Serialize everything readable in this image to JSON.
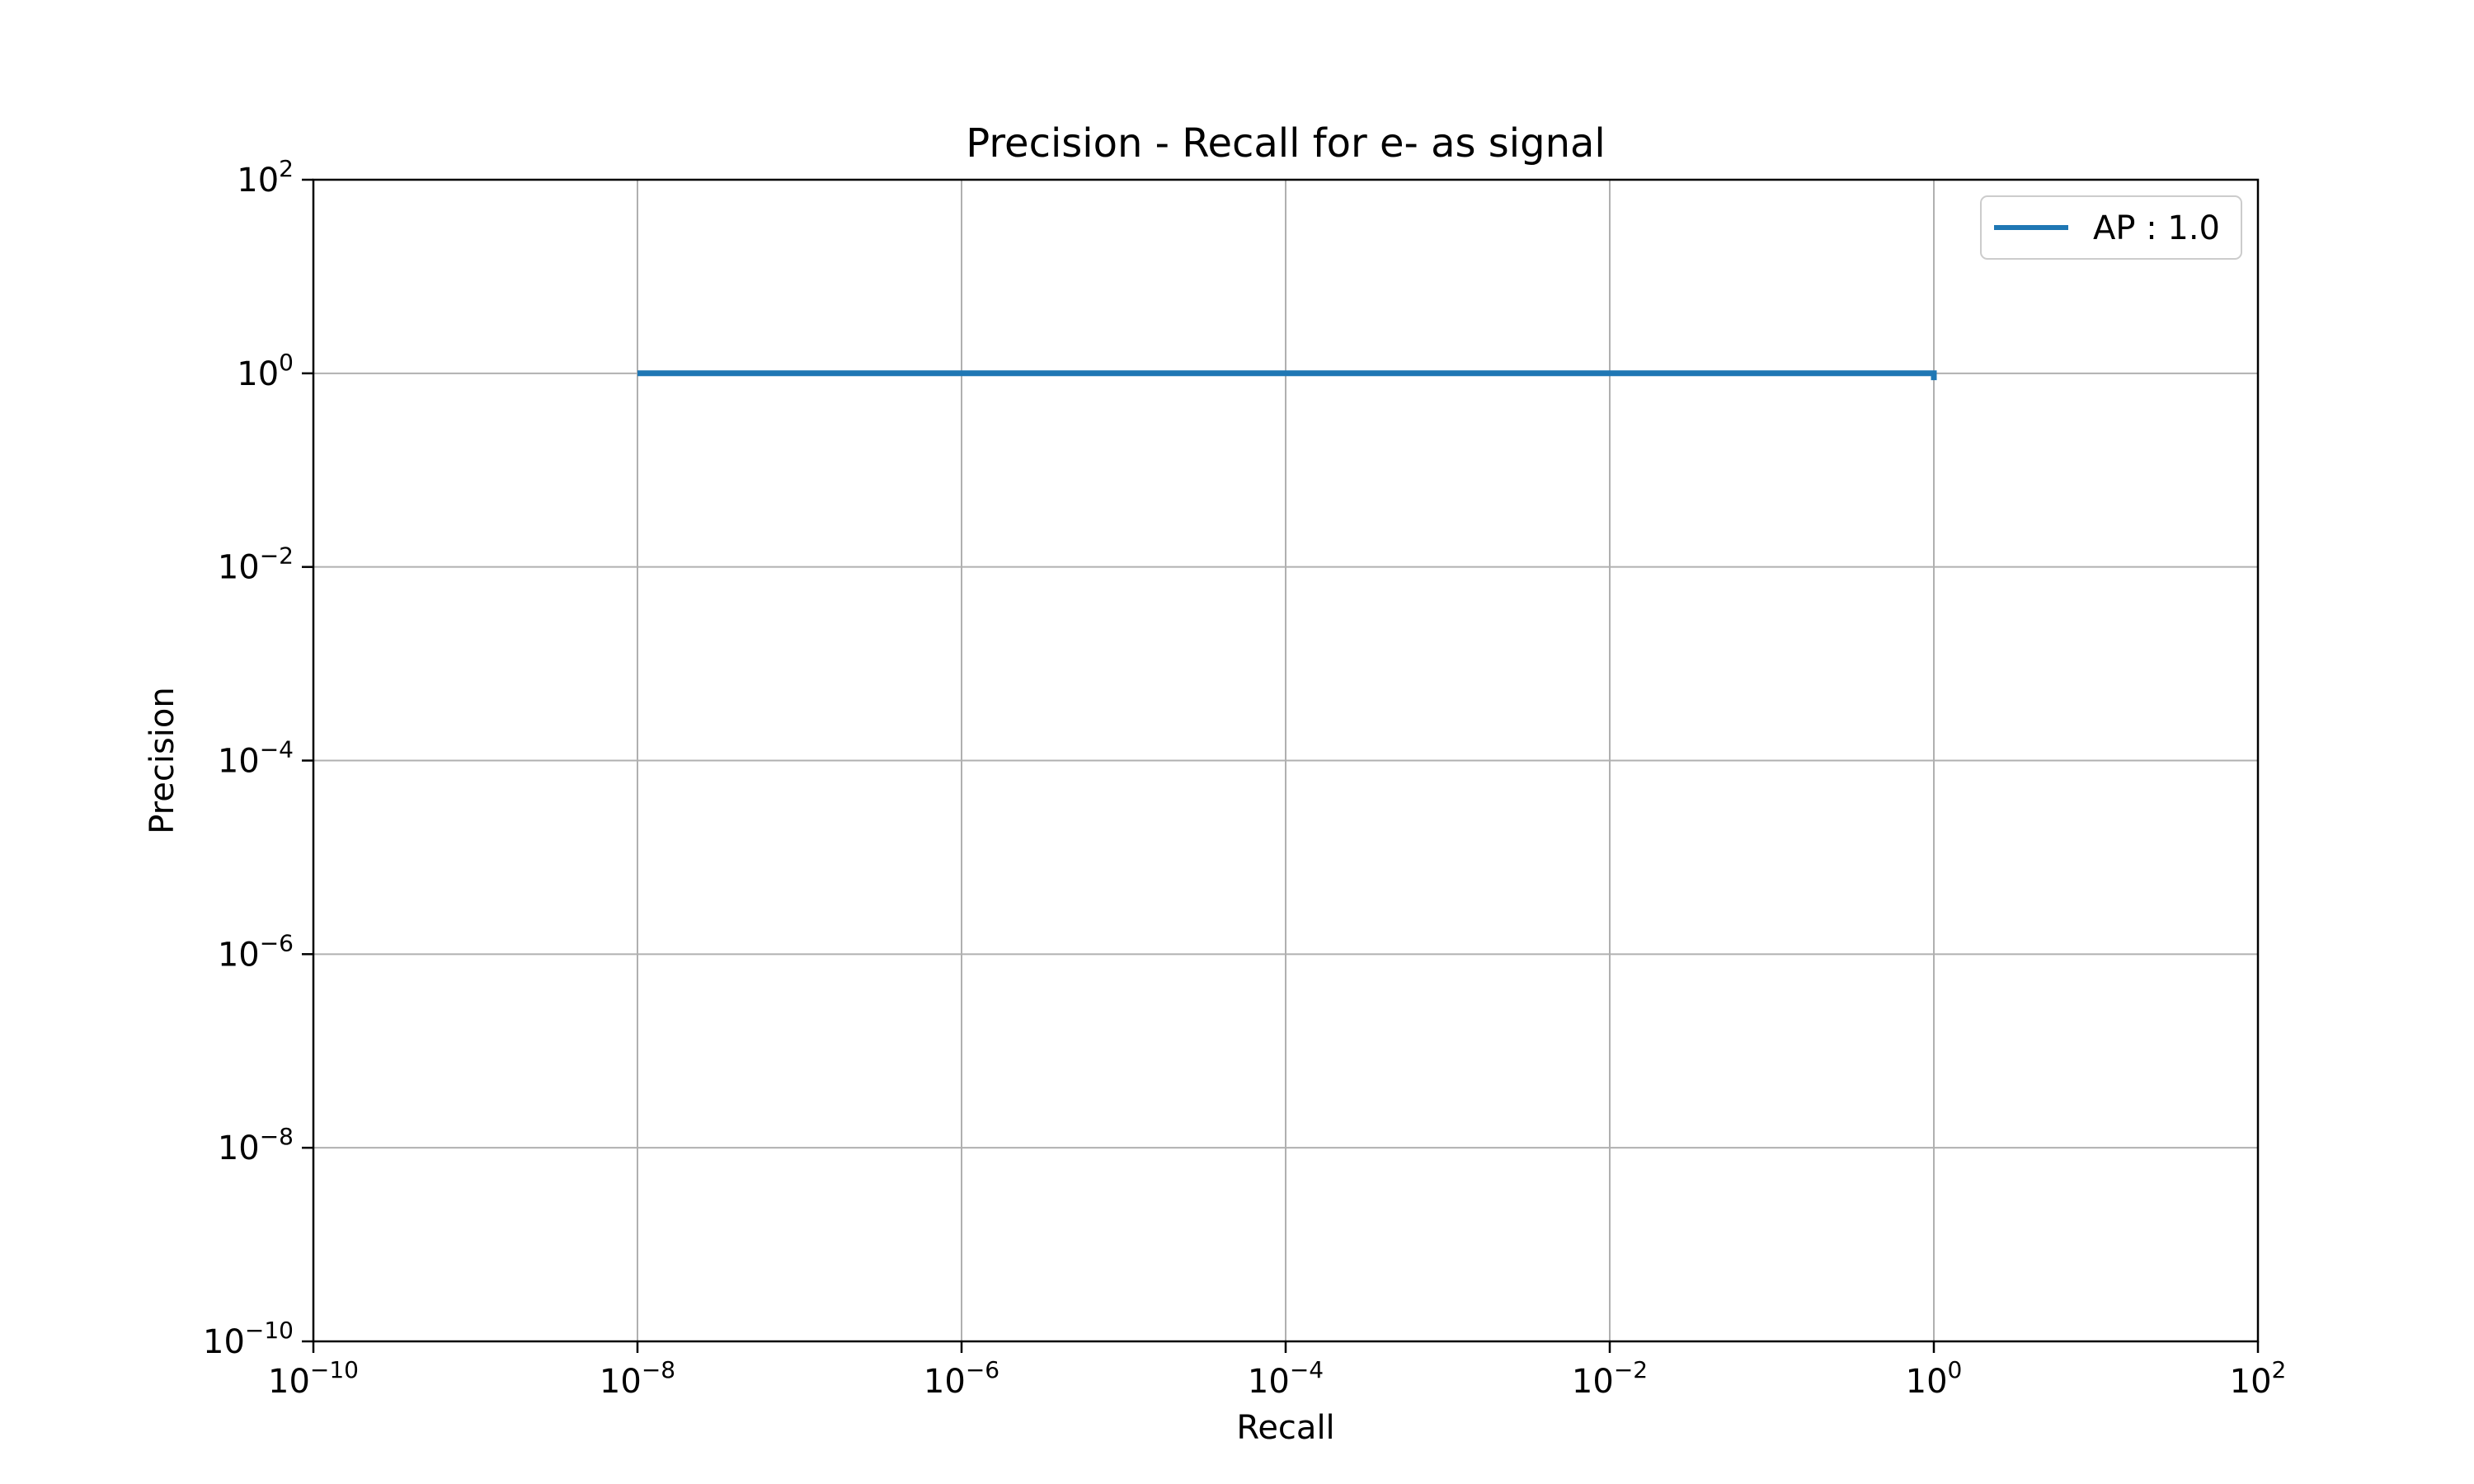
{
  "chart_data": {
    "type": "line",
    "title": "Precision - Recall for e- as signal",
    "xlabel": "Recall",
    "ylabel": "Precision",
    "xscale": "log",
    "yscale": "log",
    "xlim": [
      1e-10,
      100
    ],
    "ylim": [
      1e-10,
      100
    ],
    "grid": true,
    "legend_position": "top-right",
    "x_ticks": [
      {
        "base": "10",
        "exp": "−10"
      },
      {
        "base": "10",
        "exp": "−8"
      },
      {
        "base": "10",
        "exp": "−6"
      },
      {
        "base": "10",
        "exp": "−4"
      },
      {
        "base": "10",
        "exp": "−2"
      },
      {
        "base": "10",
        "exp": "0"
      },
      {
        "base": "10",
        "exp": "2"
      }
    ],
    "y_ticks": [
      {
        "base": "10",
        "exp": "−10"
      },
      {
        "base": "10",
        "exp": "−8"
      },
      {
        "base": "10",
        "exp": "−6"
      },
      {
        "base": "10",
        "exp": "−4"
      },
      {
        "base": "10",
        "exp": "−2"
      },
      {
        "base": "10",
        "exp": "0"
      },
      {
        "base": "10",
        "exp": "2"
      }
    ],
    "series": [
      {
        "name": "AP : 1.0",
        "color": "#1f77b4",
        "x": [
          1e-08,
          1.0,
          1.0
        ],
        "y": [
          1.0,
          1.0,
          0.85
        ]
      }
    ]
  }
}
